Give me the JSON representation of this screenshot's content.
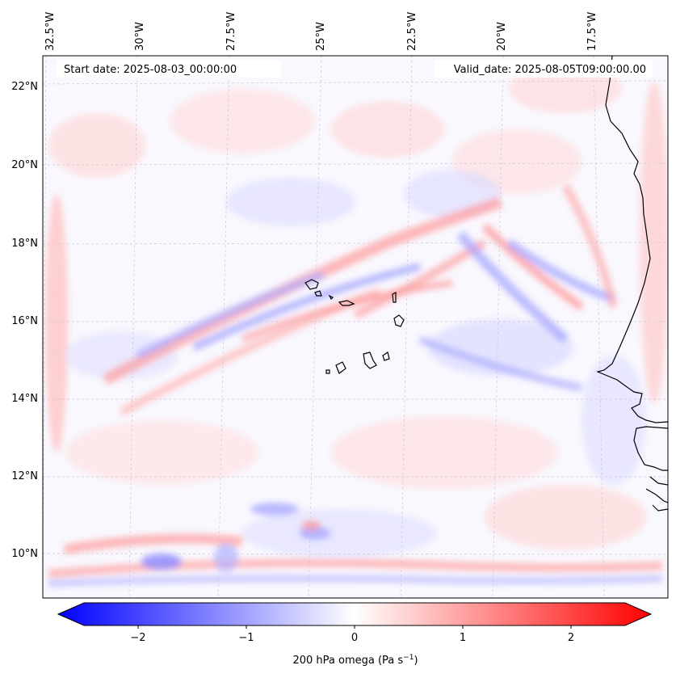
{
  "map": {
    "start_label": "Start date: 2025-08-03_00:00:00",
    "valid_label": "Valid_date: 2025-08-05T09:00:00.00",
    "lon_labels": [
      "32.5°W",
      "30°W",
      "27.5°W",
      "25°W",
      "22.5°W",
      "20°W",
      "17.5°W"
    ],
    "lat_labels": [
      "22°N",
      "20°N",
      "18°N",
      "16°N",
      "14°N",
      "12°N",
      "10°N"
    ],
    "colors": {
      "coast": "#000000",
      "grid": "#c8c8d8",
      "pos": "#ff0000",
      "neg": "#0000ff"
    }
  },
  "colorbar": {
    "label": "200 hPa omega (Pa s",
    "label_sup": "−1",
    "label_end": ")",
    "ticks": [
      "−2",
      "−1",
      "0",
      "1",
      "2"
    ],
    "range": [
      -2.5,
      2.5
    ]
  }
}
